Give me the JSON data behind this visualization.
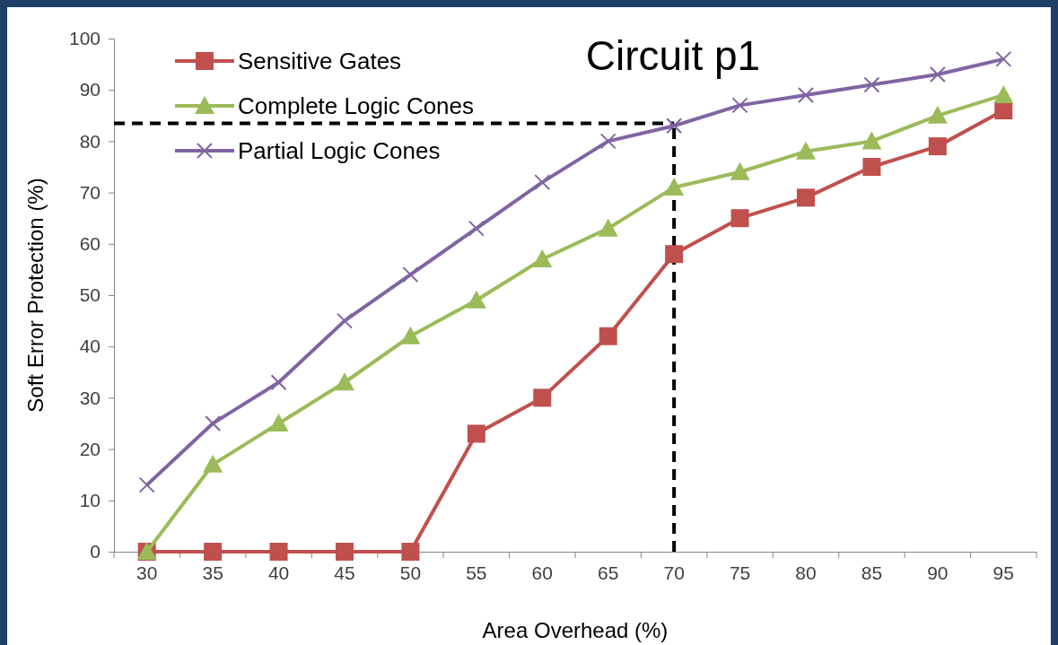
{
  "chart_data": {
    "type": "line",
    "title": "Circuit p1",
    "xlabel": "Area Overhead (%)",
    "ylabel": "Soft Error Protection (%)",
    "categories": [
      "30",
      "35",
      "40",
      "45",
      "50",
      "55",
      "60",
      "65",
      "70",
      "75",
      "80",
      "85",
      "90",
      "95"
    ],
    "series": [
      {
        "name": "Sensitive Gates",
        "color": "#c0504d",
        "marker": "square",
        "values": [
          0,
          0,
          0,
          0,
          0,
          23,
          30,
          42,
          58,
          65,
          69,
          75,
          79,
          86
        ]
      },
      {
        "name": "Complete Logic Cones",
        "color": "#9bbb59",
        "marker": "triangle",
        "values": [
          0,
          17,
          25,
          33,
          42,
          49,
          57,
          63,
          71,
          74,
          78,
          80,
          85,
          89
        ]
      },
      {
        "name": "Partial Logic Cones",
        "color": "#8064a2",
        "marker": "cross",
        "values": [
          13,
          25,
          33,
          45,
          54,
          63,
          72,
          80,
          83,
          87,
          89,
          91,
          93,
          96
        ]
      }
    ],
    "ylim": [
      0,
      100
    ],
    "yticks": [
      0,
      10,
      20,
      30,
      40,
      50,
      60,
      70,
      80,
      90,
      100
    ],
    "grid": false,
    "legend": "top left",
    "ref_lines": [
      {
        "axis": "y",
        "value": 83.5,
        "color": "#000000",
        "line_style": "dashed"
      },
      {
        "axis": "x",
        "value": "70",
        "color": "#000000",
        "line_style": "dashed"
      }
    ]
  }
}
